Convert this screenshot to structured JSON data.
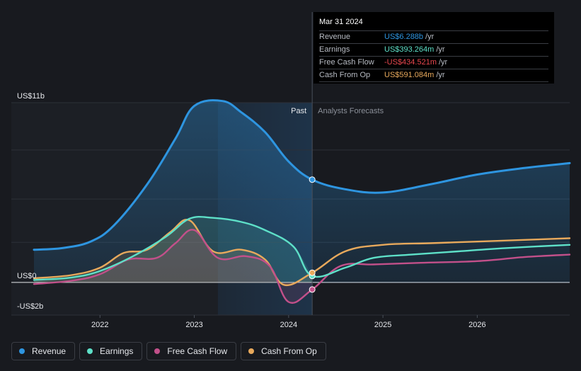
{
  "chart_data": {
    "type": "line",
    "title": "",
    "y_unit": "US$",
    "y_ticks": [
      {
        "value": 11,
        "label": "US$11b"
      },
      {
        "value": 0,
        "label": "US$0"
      },
      {
        "value": -2,
        "label": "-US$2b"
      }
    ],
    "ylim": [
      -2,
      11
    ],
    "xlim": [
      2021.3,
      2026.98
    ],
    "x_ticks": [
      {
        "value": 2022,
        "label": "2022"
      },
      {
        "value": 2023,
        "label": "2023"
      },
      {
        "value": 2024,
        "label": "2024"
      },
      {
        "value": 2025,
        "label": "2025"
      },
      {
        "value": 2026,
        "label": "2026"
      }
    ],
    "past_label": "Past",
    "forecast_label": "Analysts Forecasts",
    "divider_x": 2024.25,
    "shade_start_x": 2023.25,
    "series": [
      {
        "name": "Revenue",
        "color": "#2e95e0",
        "points": [
          [
            2021.3,
            2.0
          ],
          [
            2021.6,
            2.1
          ],
          [
            2021.9,
            2.5
          ],
          [
            2022.15,
            3.5
          ],
          [
            2022.5,
            6.0
          ],
          [
            2022.8,
            8.8
          ],
          [
            2023.0,
            10.8
          ],
          [
            2023.3,
            11.1
          ],
          [
            2023.5,
            10.4
          ],
          [
            2023.75,
            9.2
          ],
          [
            2024.0,
            7.4
          ],
          [
            2024.25,
            6.288
          ],
          [
            2024.6,
            5.7
          ],
          [
            2025.0,
            5.5
          ],
          [
            2025.5,
            6.0
          ],
          [
            2026.0,
            6.6
          ],
          [
            2026.5,
            7.0
          ],
          [
            2026.98,
            7.3
          ]
        ],
        "forecast_points": []
      },
      {
        "name": "Earnings",
        "color": "#5ee0c8",
        "points": [
          [
            2021.3,
            0.15
          ],
          [
            2021.7,
            0.3
          ],
          [
            2022.0,
            0.7
          ],
          [
            2022.35,
            1.6
          ],
          [
            2022.7,
            2.8
          ],
          [
            2022.95,
            3.9
          ],
          [
            2023.2,
            3.95
          ],
          [
            2023.5,
            3.7
          ],
          [
            2023.75,
            3.2
          ],
          [
            2024.05,
            2.2
          ],
          [
            2024.25,
            0.393
          ],
          [
            2024.6,
            0.9
          ],
          [
            2024.9,
            1.5
          ],
          [
            2025.3,
            1.7
          ],
          [
            2025.8,
            1.9
          ],
          [
            2026.3,
            2.1
          ],
          [
            2026.98,
            2.3
          ]
        ]
      },
      {
        "name": "Free Cash Flow",
        "color": "#c2508a",
        "points": [
          [
            2021.3,
            -0.1
          ],
          [
            2021.7,
            0.1
          ],
          [
            2022.0,
            0.5
          ],
          [
            2022.3,
            1.4
          ],
          [
            2022.6,
            1.5
          ],
          [
            2022.8,
            2.4
          ],
          [
            2023.0,
            3.2
          ],
          [
            2023.25,
            1.5
          ],
          [
            2023.55,
            1.6
          ],
          [
            2023.8,
            1.0
          ],
          [
            2024.0,
            -1.2
          ],
          [
            2024.25,
            -0.435
          ],
          [
            2024.55,
            1.0
          ],
          [
            2024.9,
            1.1
          ],
          [
            2025.4,
            1.2
          ],
          [
            2026.0,
            1.3
          ],
          [
            2026.5,
            1.55
          ],
          [
            2026.98,
            1.7
          ]
        ]
      },
      {
        "name": "Cash From Op",
        "color": "#e8a95c",
        "points": [
          [
            2021.3,
            0.25
          ],
          [
            2021.7,
            0.45
          ],
          [
            2022.0,
            0.9
          ],
          [
            2022.25,
            1.8
          ],
          [
            2022.5,
            2.0
          ],
          [
            2022.75,
            3.1
          ],
          [
            2022.95,
            3.8
          ],
          [
            2023.2,
            1.9
          ],
          [
            2023.5,
            2.0
          ],
          [
            2023.75,
            1.4
          ],
          [
            2023.95,
            -0.15
          ],
          [
            2024.25,
            0.591
          ],
          [
            2024.6,
            1.9
          ],
          [
            2025.0,
            2.3
          ],
          [
            2025.5,
            2.4
          ],
          [
            2026.0,
            2.5
          ],
          [
            2026.5,
            2.6
          ],
          [
            2026.98,
            2.7
          ]
        ]
      }
    ],
    "highlight_x": 2024.25
  },
  "tooltip": {
    "date": "Mar 31 2024",
    "rows": [
      {
        "name": "Revenue",
        "value": "US$6.288b",
        "unit": "/yr",
        "color": "#2e95e0"
      },
      {
        "name": "Earnings",
        "value": "US$393.264m",
        "unit": "/yr",
        "color": "#5ee0c8"
      },
      {
        "name": "Free Cash Flow",
        "value": "-US$434.521m",
        "unit": "/yr",
        "color": "#e8474e"
      },
      {
        "name": "Cash From Op",
        "value": "US$591.084m",
        "unit": "/yr",
        "color": "#e8a95c"
      }
    ]
  },
  "legend": [
    {
      "label": "Revenue",
      "color": "#2e95e0"
    },
    {
      "label": "Earnings",
      "color": "#5ee0c8"
    },
    {
      "label": "Free Cash Flow",
      "color": "#c2508a"
    },
    {
      "label": "Cash From Op",
      "color": "#e8a95c"
    }
  ]
}
